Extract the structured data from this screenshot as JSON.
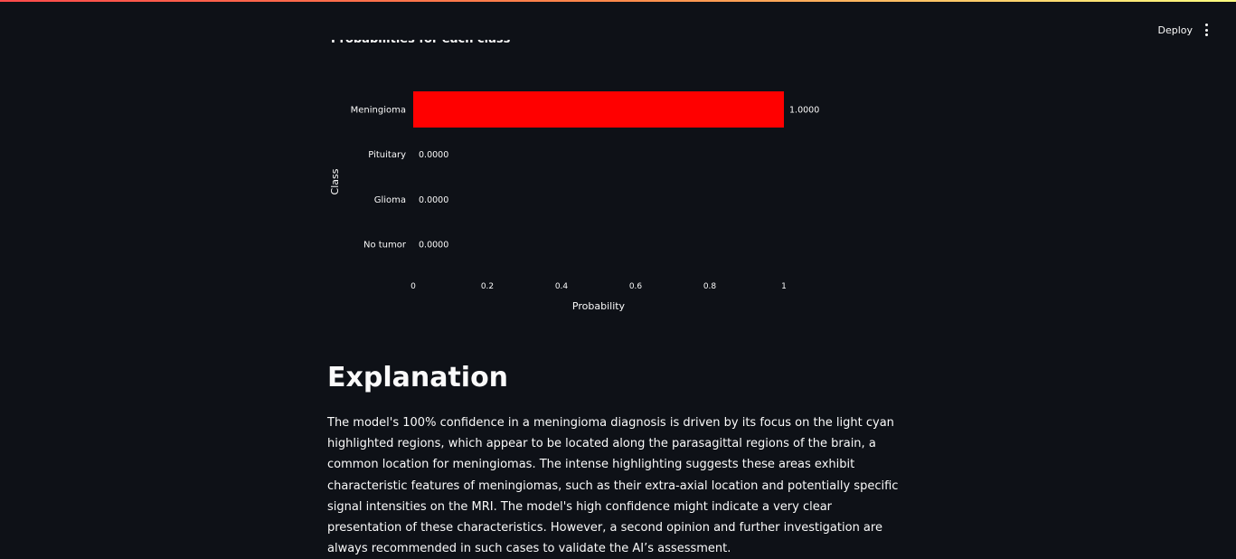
{
  "header": {
    "deploy_label": "Deploy",
    "menu_icon": "more-vertical-icon"
  },
  "colors": {
    "background": "#0e1117",
    "text": "#fafafa",
    "bar": "#ff0000"
  },
  "chart_section": {
    "title": "Probabilities for each class"
  },
  "chart_data": {
    "type": "bar",
    "orientation": "horizontal",
    "categories": [
      "Meningioma",
      "Pituitary",
      "Glioma",
      "No tumor"
    ],
    "values": [
      1.0,
      0.0,
      0.0,
      0.0
    ],
    "value_labels": [
      "1.0000",
      "0.0000",
      "0.0000",
      "0.0000"
    ],
    "xlabel": "Probability",
    "ylabel": "Class",
    "xlim": [
      0,
      1
    ],
    "x_ticks": [
      0,
      0.2,
      0.4,
      0.6,
      0.8,
      1
    ],
    "x_tick_labels": [
      "0",
      "0.2",
      "0.4",
      "0.6",
      "0.8",
      "1"
    ],
    "grid": false,
    "legend": "none",
    "bar_color": "#ff0000"
  },
  "explanation": {
    "heading": "Explanation",
    "body": "The model's 100% confidence in a meningioma diagnosis is driven by its focus on the light cyan highlighted regions, which appear to be located along the parasagittal regions of the brain, a common location for meningiomas. The intense highlighting suggests these areas exhibit characteristic features of meningiomas, such as their extra-axial location and potentially specific signal intensities on the MRI. The model's high confidence might indicate a very clear presentation of these characteristics. However, a second opinion and further investigation are always recommended in such cases to validate the AI’s assessment."
  }
}
